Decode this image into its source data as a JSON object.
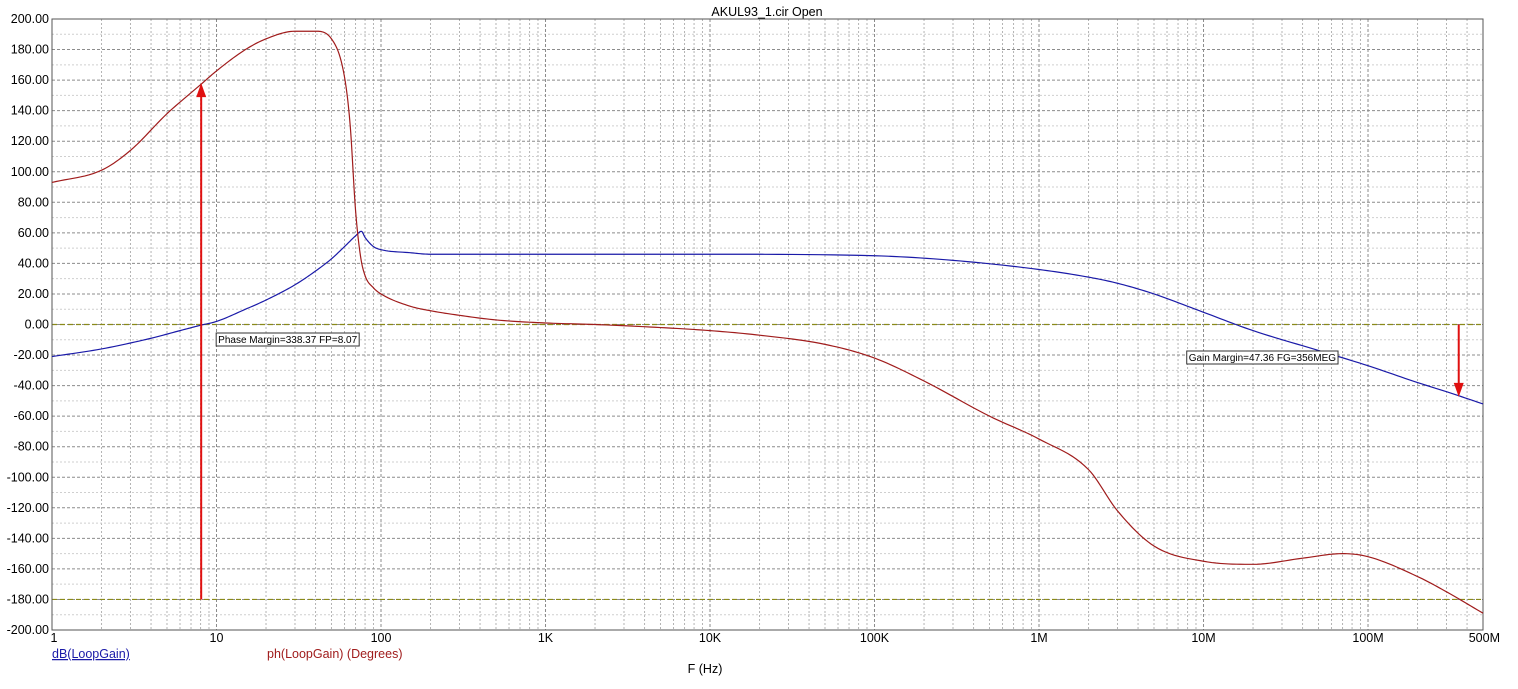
{
  "chart_data": {
    "type": "line",
    "title": "AKUL93_1.cir Open",
    "xlabel": "F (Hz)",
    "xscale": "log",
    "xlim": [
      1,
      500000000
    ],
    "ylim": [
      -200,
      200
    ],
    "grid": true,
    "y_ticks": [
      "200.00",
      "180.00",
      "160.00",
      "140.00",
      "120.00",
      "100.00",
      "80.00",
      "60.00",
      "40.00",
      "20.00",
      "0.00",
      "-20.00",
      "-40.00",
      "-60.00",
      "-80.00",
      "-100.00",
      "-120.00",
      "-140.00",
      "-160.00",
      "-180.00",
      "-200.00"
    ],
    "x_ticks": [
      "1",
      "10",
      "100",
      "1K",
      "10K",
      "100K",
      "1M",
      "10M",
      "100M",
      "500M"
    ],
    "x_tick_values": [
      1,
      10,
      100,
      1000,
      10000,
      100000,
      1000000,
      10000000,
      100000000,
      500000000
    ],
    "reference_lines": [
      0,
      -180
    ],
    "series": [
      {
        "name": "dB(LoopGain)",
        "color": "#1a1aa8",
        "x": [
          1,
          2,
          4,
          6,
          8,
          10,
          15,
          20,
          30,
          40,
          50,
          60,
          70,
          76,
          80,
          90,
          100,
          150,
          200,
          300,
          500,
          1000,
          10000,
          100000,
          300000,
          1000000,
          2000000,
          3000000,
          5000000,
          10000000,
          20000000,
          50000000,
          100000000,
          200000000,
          300000000,
          500000000
        ],
        "y": [
          -21,
          -16,
          -9,
          -4,
          -0.5,
          2,
          10,
          16,
          26,
          35,
          43,
          51,
          58,
          61,
          57,
          51,
          49,
          47,
          46,
          46,
          46,
          46,
          46,
          45,
          42,
          36,
          31,
          27,
          20,
          8,
          -4,
          -17,
          -27,
          -38,
          -44,
          -52
        ]
      },
      {
        "name": "ph(LoopGain) (Degrees)",
        "color": "#a01c1c",
        "x": [
          1,
          2,
          3,
          5,
          8,
          10,
          15,
          20,
          30,
          40,
          50,
          60,
          65,
          70,
          75,
          80,
          90,
          100,
          150,
          200,
          300,
          500,
          1000,
          2000,
          5000,
          10000,
          20000,
          50000,
          100000,
          200000,
          500000,
          1000000,
          2000000,
          3000000,
          5000000,
          10000000,
          20000000,
          40000000,
          70000000,
          100000000,
          200000000,
          300000000,
          500000000
        ],
        "y": [
          93,
          101,
          114,
          138,
          157,
          166,
          180,
          187,
          192,
          192,
          187,
          162,
          130,
          75,
          45,
          32,
          24,
          20,
          12,
          9,
          6,
          3,
          1,
          0,
          -2,
          -4,
          -7,
          -13,
          -22,
          -37,
          -60,
          -75,
          -95,
          -122,
          -145,
          -155,
          -157,
          -153,
          -150,
          -152,
          -165,
          -175,
          -189
        ]
      }
    ],
    "annotations": [
      {
        "label": "Phase Margin=338.37 FP=8.07",
        "arrow_x": 8.07,
        "arrow_from": -180,
        "arrow_to": 158
      },
      {
        "label": "Gain Margin=47.36 FG=356MEG",
        "arrow_x": 356000000,
        "arrow_from": 0,
        "arrow_to": -47.36
      }
    ]
  }
}
